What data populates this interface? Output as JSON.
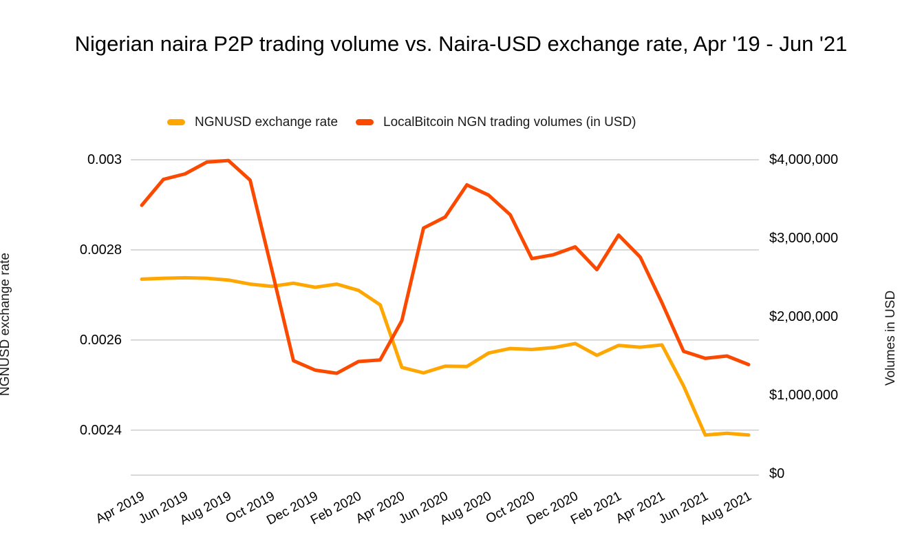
{
  "page": {
    "background": "#FFFFFF"
  },
  "chart_data": {
    "type": "line",
    "title": "Nigerian naira P2P trading volume vs. Naira-USD exchange rate, Apr '19 - Jun '21",
    "legend_position": "top",
    "grid": true,
    "gridline_color": "#CCCCCC",
    "x_categories": [
      "Apr 2019",
      "May 2019",
      "Jun 2019",
      "Jul 2019",
      "Aug 2019",
      "Sep 2019",
      "Oct 2019",
      "Nov 2019",
      "Dec 2019",
      "Jan 2020",
      "Feb 2020",
      "Mar 2020",
      "Apr 2020",
      "May 2020",
      "Jun 2020",
      "Jul 2020",
      "Aug 2020",
      "Sep 2020",
      "Oct 2020",
      "Nov 2020",
      "Dec 2020",
      "Jan 2021",
      "Feb 2021",
      "Mar 2021",
      "Apr 2021",
      "May 2021",
      "Jun 2021",
      "Jul 2021",
      "Aug 2021"
    ],
    "x_tick_labels": [
      "Apr 2019",
      "Jun 2019",
      "Aug 2019",
      "Oct 2019",
      "Dec 2019",
      "Feb 2020",
      "Apr 2020",
      "Jun 2020",
      "Aug 2020",
      "Oct 2020",
      "Dec 2020",
      "Feb 2021",
      "Apr 2021",
      "Jun 2021",
      "Aug 2021"
    ],
    "series": [
      {
        "name": "NGNUSD exchange rate",
        "axis": "left",
        "color": "#FFA600",
        "values": [
          0.002735,
          0.002737,
          0.002738,
          0.002737,
          0.002733,
          0.002724,
          0.002719,
          0.002726,
          0.002717,
          0.002724,
          0.00271,
          0.002678,
          0.002539,
          0.002527,
          0.002542,
          0.002541,
          0.002571,
          0.002581,
          0.002579,
          0.002583,
          0.002592,
          0.002566,
          0.002588,
          0.002584,
          0.002589,
          0.002498,
          0.002389,
          0.002393,
          0.002389
        ]
      },
      {
        "name": "LocalBitcoin NGN trading volumes (in USD)",
        "axis": "right",
        "color": "#FB4A00",
        "values": [
          3420000,
          3750000,
          3820000,
          3970000,
          3990000,
          3740000,
          2600000,
          1440000,
          1320000,
          1280000,
          1430000,
          1450000,
          1950000,
          3130000,
          3270000,
          3680000,
          3550000,
          3300000,
          2740000,
          2790000,
          2890000,
          2600000,
          3040000,
          2760000,
          2180000,
          1560000,
          1470000,
          1500000,
          1390000
        ]
      }
    ],
    "left_axis": {
      "title": "NGNUSD exchange rate",
      "min": 0.0023,
      "max": 0.003,
      "tick_labels": [
        "0.003",
        "0.0028",
        "0.0026",
        "0.0024"
      ],
      "tick_values": [
        0.003,
        0.0028,
        0.0026,
        0.0024
      ]
    },
    "right_axis": {
      "title": "Volumes in USD",
      "min": 0,
      "max": 4000000,
      "tick_labels": [
        "$4,000,000",
        "$3,000,000",
        "$2,000,000",
        "$1,000,000",
        "$0"
      ],
      "tick_values": [
        4000000,
        3000000,
        2000000,
        1000000,
        0
      ]
    }
  }
}
